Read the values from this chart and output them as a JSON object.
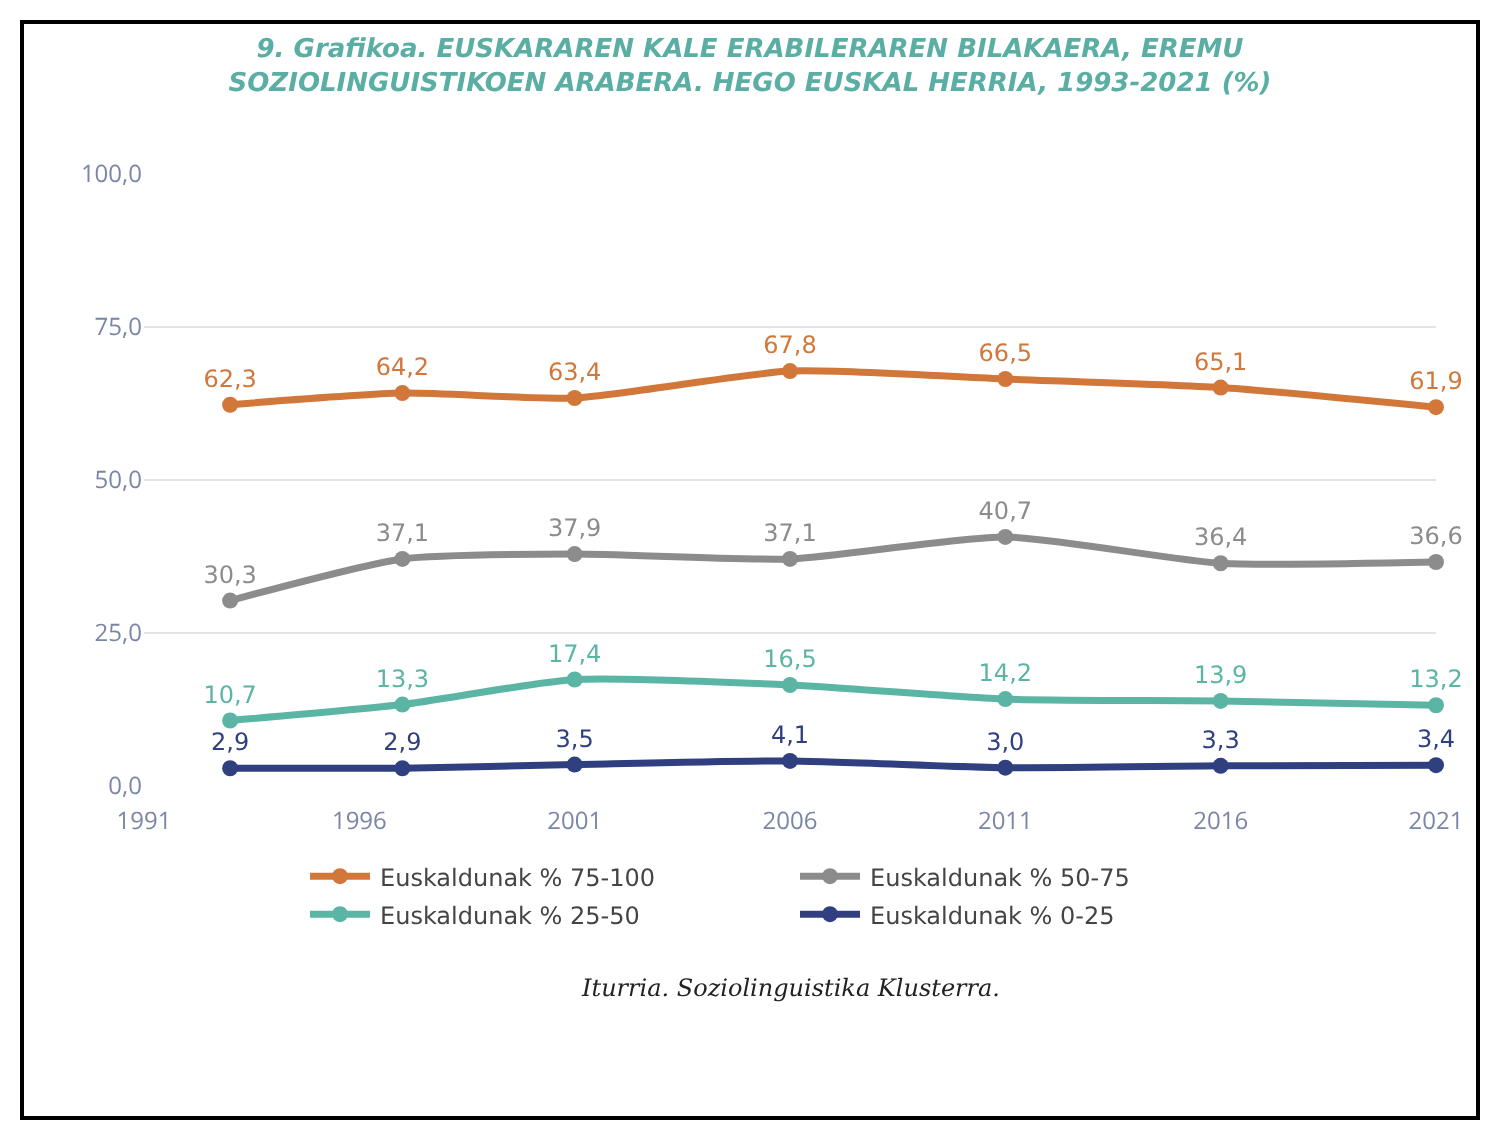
{
  "chart_data": {
    "type": "line",
    "title": "9. Grafikoa. EUSKARAREN KALE ERABILERAREN BILAKAERA, EREMU SOZIOLINGUISTIKOEN ARABERA. HEGO EUSKAL HERRIA, 1993-2021 (%)",
    "x": [
      1993,
      1997,
      2001,
      2006,
      2011,
      2016,
      2021
    ],
    "series": [
      {
        "name": "Euskaldunak % 75-100",
        "color": "#d2773a",
        "values": [
          62.3,
          64.2,
          63.4,
          67.8,
          66.5,
          65.1,
          61.9
        ],
        "value_labels": [
          "62,3",
          "64,2",
          "63,4",
          "67,8",
          "66,5",
          "65,1",
          "61,9"
        ]
      },
      {
        "name": "Euskaldunak % 50-75",
        "color": "#8c8c8c",
        "values": [
          30.3,
          37.1,
          37.9,
          37.1,
          40.7,
          36.4,
          36.6
        ],
        "value_labels": [
          "30,3",
          "37,1",
          "37,9",
          "37,1",
          "40,7",
          "36,4",
          "36,6"
        ]
      },
      {
        "name": "Euskaldunak % 25-50",
        "color": "#5bb5a5",
        "values": [
          10.7,
          13.3,
          17.4,
          16.5,
          14.2,
          13.9,
          13.2
        ],
        "value_labels": [
          "10,7",
          "13,3",
          "17,4",
          "16,5",
          "14,2",
          "13,9",
          "13,2"
        ]
      },
      {
        "name": "Euskaldunak % 0-25",
        "color": "#2f3f80",
        "values": [
          2.9,
          2.9,
          3.5,
          4.1,
          3.0,
          3.3,
          3.4
        ],
        "value_labels": [
          "2,9",
          "2,9",
          "3,5",
          "4,1",
          "3,0",
          "3,3",
          "3,4"
        ]
      }
    ],
    "xlim": [
      1991,
      2021
    ],
    "xticks": [
      1991,
      1996,
      2001,
      2006,
      2011,
      2016,
      2021
    ],
    "ylim": [
      0,
      100
    ],
    "yticks": [
      {
        "value": 0,
        "label": "0,0"
      },
      {
        "value": 25,
        "label": "25,0"
      },
      {
        "value": 50,
        "label": "50,0"
      },
      {
        "value": 75,
        "label": "75,0"
      },
      {
        "value": 100,
        "label": "100,0"
      }
    ],
    "grid": "y",
    "legend": "bottom",
    "marker": "circle",
    "line_style": "solid",
    "annotations": [
      "Iturria. Soziolinguistika Klusterra."
    ]
  }
}
